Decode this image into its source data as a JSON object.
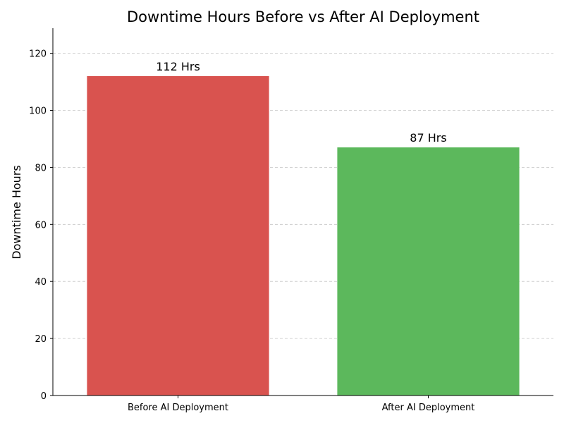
{
  "chart_data": {
    "type": "bar",
    "title": "Downtime Hours Before vs After AI Deployment",
    "xlabel": "",
    "ylabel": "Downtime Hours",
    "categories": [
      "Before AI Deployment",
      "After AI Deployment"
    ],
    "values": [
      112,
      87
    ],
    "data_labels": [
      "112 Hrs",
      "87 Hrs"
    ],
    "colors": [
      "#d9534f",
      "#5cb85c"
    ],
    "ylim": [
      0,
      128.8
    ],
    "yticks": [
      0,
      20,
      40,
      60,
      80,
      100,
      120
    ],
    "grid": "y-dashed",
    "legend": "none"
  }
}
